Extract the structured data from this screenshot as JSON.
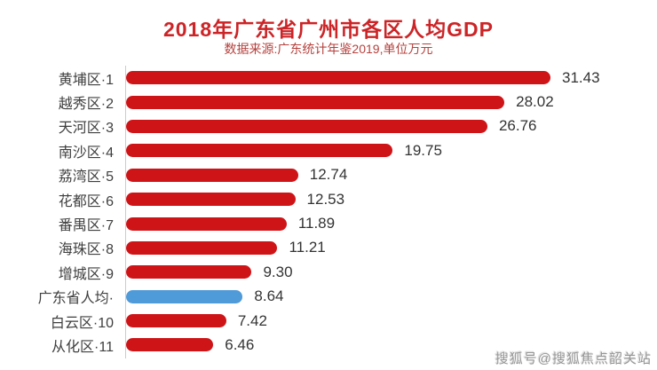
{
  "watermark": "搜狐号@搜狐焦点韶关站",
  "colors": {
    "bar": "#cf1418",
    "highlight_bar": "#4f9ad9",
    "title": "#cc2427",
    "subtitle": "#b5413d",
    "label": "#3f3f3f",
    "value": "#333333",
    "axis_line": "#cccccc"
  },
  "chart_data": {
    "type": "bar",
    "orientation": "horizontal",
    "title": "2018年广东省广州市各区人均GDP",
    "subtitle": "数据来源:广东统计年鉴2019,单位万元",
    "unit": "万元",
    "xlim": [
      0,
      33
    ],
    "grid": false,
    "legend": null,
    "categories": [
      "黄埔区·1",
      "越秀区·2",
      "天河区·3",
      "南沙区·4",
      "荔湾区·5",
      "花都区·6",
      "番禺区·7",
      "海珠区·8",
      "增城区·9",
      "广东省人均·",
      "白云区·10",
      "从化区·11"
    ],
    "values": [
      31.43,
      28.02,
      26.76,
      19.75,
      12.74,
      12.53,
      11.89,
      11.21,
      9.3,
      8.64,
      7.42,
      6.46
    ],
    "value_labels": [
      "31.43",
      "28.02",
      "26.76",
      "19.75",
      "12.74",
      "12.53",
      "11.89",
      "11.21",
      "9.30",
      "8.64",
      "7.42",
      "6.46"
    ],
    "highlight_index": 9,
    "highlight_category": "广东省人均·",
    "highlight_note": "provincial average shown in blue; all district bars in red"
  }
}
